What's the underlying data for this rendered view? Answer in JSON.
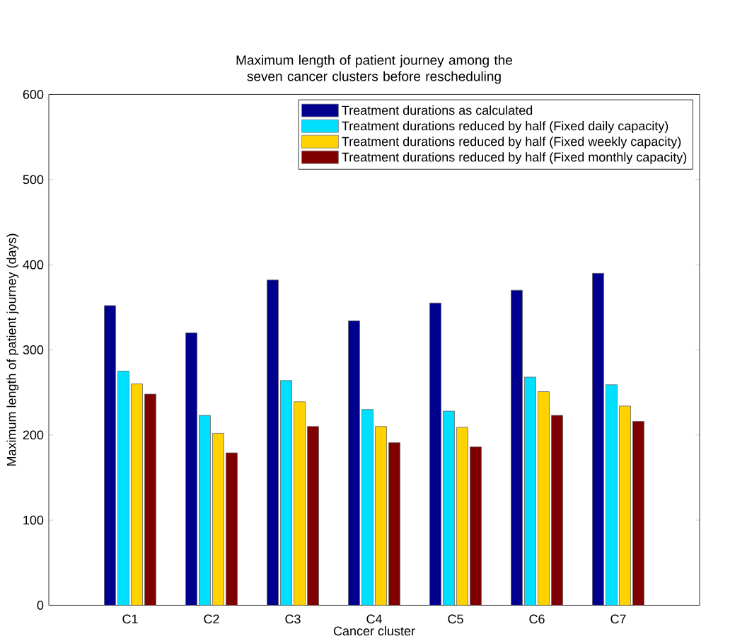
{
  "chart_data": {
    "type": "bar",
    "title": "Maximum length of patient journey among the seven cancer clusters before rescheduling",
    "xlabel": "Cancer cluster",
    "ylabel": "Maximum length of patient journey (days)",
    "categories": [
      "C1",
      "C2",
      "C3",
      "C4",
      "C5",
      "C6",
      "C7"
    ],
    "series": [
      {
        "name": "Treatment durations as calculated",
        "color": "#00008f",
        "values": [
          352,
          320,
          382,
          334,
          355,
          370,
          390
        ]
      },
      {
        "name": "Treatment durations reduced by half (Fixed daily capacity)",
        "color": "#00dfff",
        "values": [
          275,
          223,
          264,
          230,
          228,
          268,
          259
        ]
      },
      {
        "name": "Treatment durations reduced by half (Fixed weekly capacity)",
        "color": "#ffd200",
        "values": [
          260,
          202,
          239,
          210,
          209,
          251,
          234
        ]
      },
      {
        "name": "Treatment durations reduced by half (Fixed monthly capacity)",
        "color": "#800000",
        "values": [
          248,
          179,
          210,
          191,
          186,
          223,
          216
        ]
      }
    ],
    "ylim": [
      0,
      600
    ],
    "yticks": [
      0,
      100,
      200,
      300,
      400,
      500,
      600
    ],
    "grid": false,
    "legend": "top right"
  }
}
